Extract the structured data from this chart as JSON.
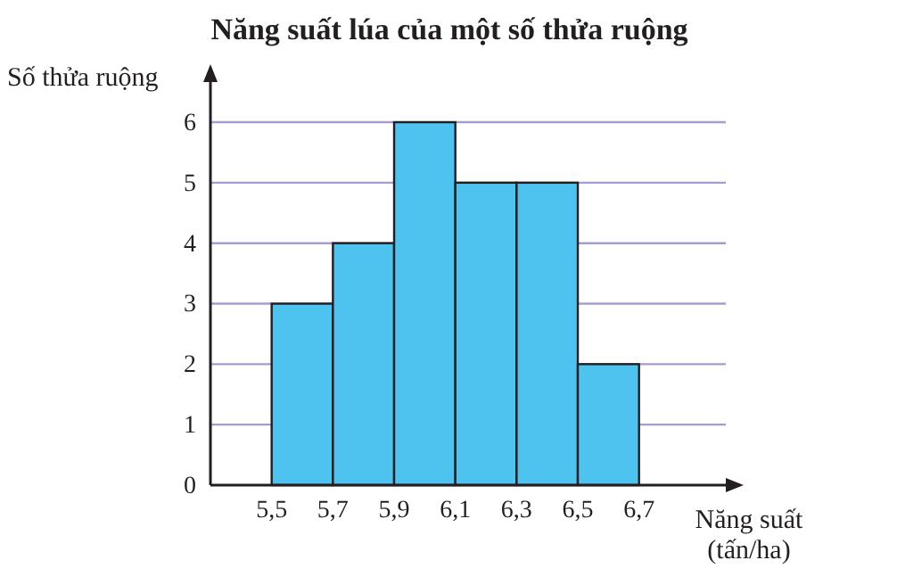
{
  "chart_data": {
    "type": "histogram",
    "title": "Năng suất lúa của một số thửa ruộng",
    "xlabel": "Năng suất\n(tấn/ha)",
    "ylabel": "Số thửa ruộng",
    "bins": [
      5.5,
      5.7,
      5.9,
      6.1,
      6.3,
      6.5,
      6.7
    ],
    "values": [
      3,
      4,
      6,
      5,
      5,
      2
    ],
    "color": "#4ec3ef",
    "xlim": [
      5.3,
      7.03
    ],
    "xticks": [
      {
        "value": 5.5,
        "label": "5,5"
      },
      {
        "value": 5.7,
        "label": "5,7"
      },
      {
        "value": 5.9,
        "label": "5,9"
      },
      {
        "value": 6.1,
        "label": "6,1"
      },
      {
        "value": 6.3,
        "label": "6,3"
      },
      {
        "value": 6.5,
        "label": "6,5"
      },
      {
        "value": 6.7,
        "label": "6,7"
      }
    ],
    "ylim": [
      0,
      6.9
    ],
    "yticks": [
      0,
      1,
      2,
      3,
      4,
      5,
      6
    ],
    "grid": "y"
  }
}
